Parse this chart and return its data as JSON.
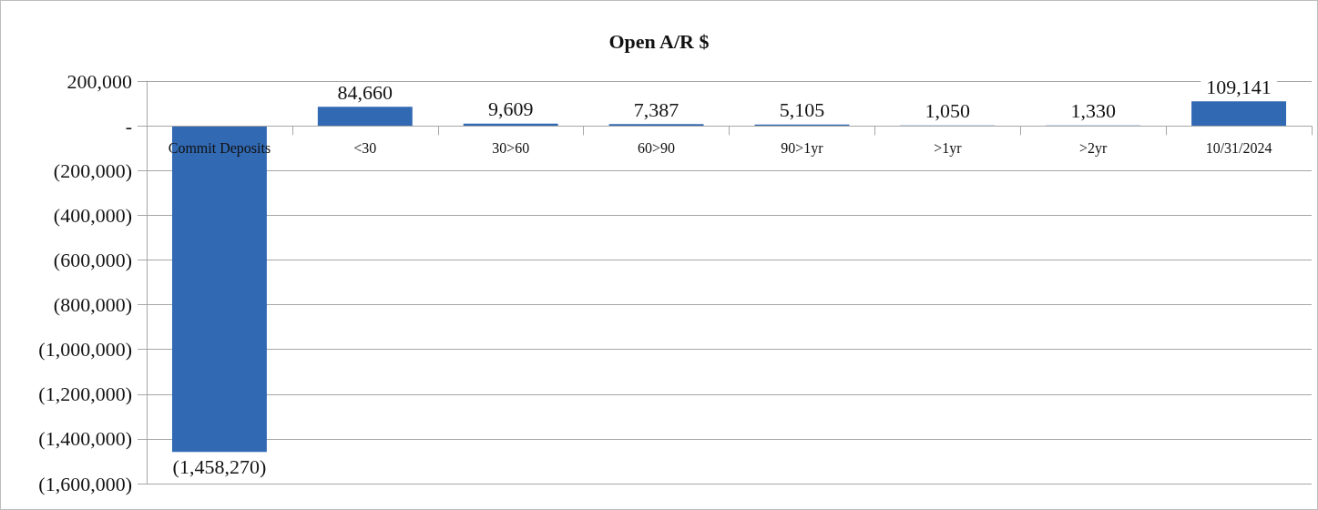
{
  "chart_data": {
    "type": "bar",
    "title": "Open A/R $",
    "categories": [
      "Commit Deposits",
      "<30",
      "30>60",
      "60>90",
      "90>1yr",
      ">1yr",
      ">2yr",
      "10/31/2024"
    ],
    "values": [
      -1458270,
      84660,
      9609,
      7387,
      5105,
      1050,
      1330,
      109141
    ],
    "value_labels": [
      "(1,458,270)",
      "84,660",
      "9,609",
      "7,387",
      "5,105",
      "1,050",
      "1,330",
      "109,141"
    ],
    "color": "#3269b3",
    "ylim": [
      -1600000,
      200000
    ],
    "yticks": [
      {
        "value": 200000,
        "label": "200,000"
      },
      {
        "value": 0,
        "label": "-"
      },
      {
        "value": -200000,
        "label": "(200,000)"
      },
      {
        "value": -400000,
        "label": "(400,000)"
      },
      {
        "value": -600000,
        "label": "(600,000)"
      },
      {
        "value": -800000,
        "label": "(800,000)"
      },
      {
        "value": -1000000,
        "label": "(1,000,000)"
      },
      {
        "value": -1200000,
        "label": "(1,200,000)"
      },
      {
        "value": -1400000,
        "label": "(1,400,000)"
      },
      {
        "value": -1600000,
        "label": "(1,600,000)"
      }
    ],
    "grid": "y"
  }
}
